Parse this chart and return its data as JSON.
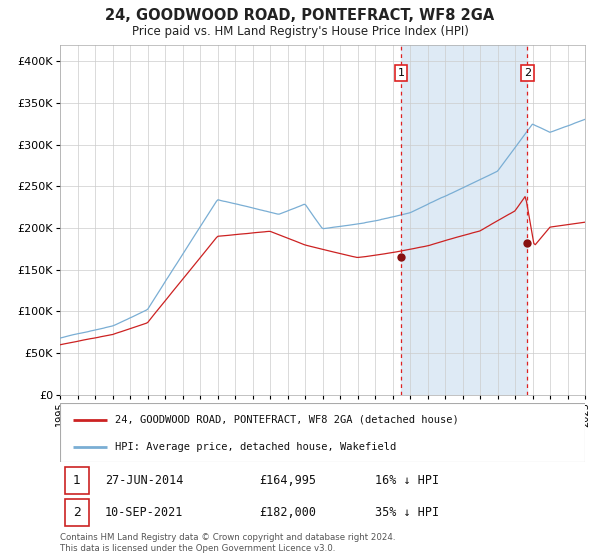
{
  "title": "24, GOODWOOD ROAD, PONTEFRACT, WF8 2GA",
  "subtitle": "Price paid vs. HM Land Registry's House Price Index (HPI)",
  "legend_property": "24, GOODWOOD ROAD, PONTEFRACT, WF8 2GA (detached house)",
  "legend_hpi": "HPI: Average price, detached house, Wakefield",
  "transaction1_date": "27-JUN-2014",
  "transaction1_price": 164995,
  "transaction1_pct": "16% ↓ HPI",
  "transaction2_date": "10-SEP-2021",
  "transaction2_price": 182000,
  "transaction2_pct": "35% ↓ HPI",
  "footer1": "Contains HM Land Registry data © Crown copyright and database right 2024.",
  "footer2": "This data is licensed under the Open Government Licence v3.0.",
  "hpi_color": "#7aaed4",
  "property_color": "#cc2222",
  "vline_color": "#dd2222",
  "shade_color": "#deeaf5",
  "marker_color": "#881111",
  "background_color": "#ffffff",
  "grid_color": "#cccccc",
  "ylim": [
    0,
    420000
  ],
  "yticks": [
    0,
    50000,
    100000,
    150000,
    200000,
    250000,
    300000,
    350000,
    400000
  ],
  "year_start": 1995,
  "year_end": 2025,
  "transaction1_year": 2014.49,
  "transaction2_year": 2021.71
}
